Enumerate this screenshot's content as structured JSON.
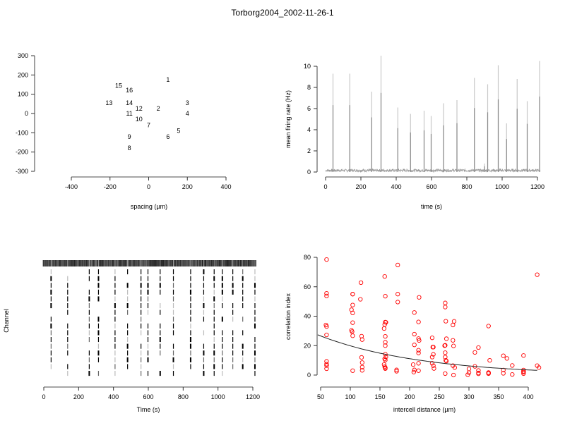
{
  "title": "Torborg2004_2002-11-26-1",
  "chart_data": [
    {
      "id": "layout",
      "type": "scatter",
      "title": "",
      "xlabel": "spacing (µm)",
      "ylabel": "",
      "xlim": [
        -400,
        400
      ],
      "ylim": [
        -300,
        300
      ],
      "xticks": [
        -400,
        -200,
        0,
        200,
        400
      ],
      "yticks": [
        -300,
        -200,
        -100,
        0,
        100,
        200,
        300
      ],
      "points": [
        {
          "label": "1",
          "x": 100,
          "y": 175
        },
        {
          "label": "2",
          "x": 50,
          "y": 25
        },
        {
          "label": "3",
          "x": 200,
          "y": 55
        },
        {
          "label": "4",
          "x": 200,
          "y": 0
        },
        {
          "label": "5",
          "x": 155,
          "y": -90
        },
        {
          "label": "6",
          "x": 100,
          "y": -120
        },
        {
          "label": "7",
          "x": 0,
          "y": -60
        },
        {
          "label": "8",
          "x": -100,
          "y": -180
        },
        {
          "label": "9",
          "x": -100,
          "y": -120
        },
        {
          "label": "10",
          "x": -50,
          "y": -30
        },
        {
          "label": "11",
          "x": -100,
          "y": 0
        },
        {
          "label": "12",
          "x": -50,
          "y": 25
        },
        {
          "label": "13",
          "x": -205,
          "y": 55
        },
        {
          "label": "14",
          "x": -100,
          "y": 55
        },
        {
          "label": "15",
          "x": -155,
          "y": 145
        },
        {
          "label": "16",
          "x": -100,
          "y": 120
        }
      ]
    },
    {
      "id": "rate",
      "type": "line",
      "title": "",
      "xlabel": "time (s)",
      "ylabel": "mean firing rate (Hz)",
      "xlim": [
        0,
        1200
      ],
      "ylim": [
        0,
        10
      ],
      "xticks": [
        0,
        200,
        400,
        600,
        800,
        1000,
        1200
      ],
      "yticks": [
        0,
        2,
        4,
        6,
        8,
        10
      ],
      "baseline": 0.15,
      "bursts": [
        {
          "t": 42,
          "peak": 9.3
        },
        {
          "t": 137,
          "peak": 9.3
        },
        {
          "t": 261,
          "peak": 7.6
        },
        {
          "t": 314,
          "peak": 11.0
        },
        {
          "t": 409,
          "peak": 6.1
        },
        {
          "t": 481,
          "peak": 5.5
        },
        {
          "t": 558,
          "peak": 5.8
        },
        {
          "t": 598,
          "peak": 5.3
        },
        {
          "t": 668,
          "peak": 6.5
        },
        {
          "t": 744,
          "peak": 6.8
        },
        {
          "t": 843,
          "peak": 8.9
        },
        {
          "t": 900,
          "peak": 0.8
        },
        {
          "t": 918,
          "peak": 8.3
        },
        {
          "t": 978,
          "peak": 10.1
        },
        {
          "t": 1025,
          "peak": 4.6
        },
        {
          "t": 1085,
          "peak": 8.8
        },
        {
          "t": 1142,
          "peak": 6.7
        },
        {
          "t": 1212,
          "peak": 10.5
        }
      ]
    },
    {
      "id": "raster",
      "type": "raster",
      "title": "",
      "xlabel": "Time (s)",
      "ylabel": "Channel",
      "xlim": [
        0,
        1200
      ],
      "xticks": [
        0,
        200,
        400,
        600,
        800,
        1000,
        1200
      ],
      "channels": 16,
      "burst_times": [
        42,
        137,
        261,
        314,
        409,
        481,
        558,
        598,
        668,
        744,
        843,
        918,
        978,
        1025,
        1085,
        1142,
        1212
      ]
    },
    {
      "id": "correlation",
      "type": "scatter",
      "title": "",
      "xlabel": "intercell distance (µm)",
      "ylabel": "correlation index",
      "xlim": [
        50,
        400
      ],
      "ylim": [
        0,
        80
      ],
      "xticks": [
        50,
        100,
        150,
        200,
        250,
        300,
        350,
        400
      ],
      "yticks": [
        0,
        20,
        40,
        60,
        80
      ],
      "marker_color": "#ff0000",
      "fit": {
        "a": 35.5,
        "b": 0.0058,
        "x_from": 45,
        "x_to": 415
      },
      "points": [
        [
          60,
          78.5
        ],
        [
          60,
          55.5
        ],
        [
          60,
          53.7
        ],
        [
          59,
          34
        ],
        [
          60,
          33
        ],
        [
          60,
          27.3
        ],
        [
          60,
          9.3
        ],
        [
          60,
          7.4
        ],
        [
          60,
          6.5
        ],
        [
          60,
          4.3
        ],
        [
          104,
          55
        ],
        [
          104,
          55
        ],
        [
          104,
          47.6
        ],
        [
          102,
          44.4
        ],
        [
          104,
          42.2
        ],
        [
          104,
          35.6
        ],
        [
          102,
          30.4
        ],
        [
          103,
          29.5
        ],
        [
          104,
          26.7
        ],
        [
          104,
          3
        ],
        [
          118,
          62.8
        ],
        [
          117,
          51.5
        ],
        [
          119,
          26.4
        ],
        [
          120,
          24.1
        ],
        [
          119,
          12
        ],
        [
          120,
          8.5
        ],
        [
          120,
          5.4
        ],
        [
          120,
          3.2
        ],
        [
          158,
          67
        ],
        [
          159,
          53.6
        ],
        [
          159,
          36
        ],
        [
          160,
          35.8
        ],
        [
          158,
          34.3
        ],
        [
          157,
          31.6
        ],
        [
          159,
          26.3
        ],
        [
          159,
          22.3
        ],
        [
          159,
          20
        ],
        [
          159,
          14.2
        ],
        [
          160,
          12.3
        ],
        [
          158,
          11
        ],
        [
          159,
          10.2
        ],
        [
          157,
          7.2
        ],
        [
          158,
          5.7
        ],
        [
          159,
          5
        ],
        [
          159,
          4.4
        ],
        [
          180,
          74.8
        ],
        [
          180,
          55
        ],
        [
          180,
          49.6
        ],
        [
          178,
          3.5
        ],
        [
          178,
          2.6
        ],
        [
          216,
          52.8
        ],
        [
          208,
          42.5
        ],
        [
          215,
          36.1
        ],
        [
          208,
          27.8
        ],
        [
          215,
          24.8
        ],
        [
          216,
          23.5
        ],
        [
          208,
          20.5
        ],
        [
          215,
          16.9
        ],
        [
          215,
          15
        ],
        [
          206,
          7.1
        ],
        [
          215,
          8
        ],
        [
          208,
          3.5
        ],
        [
          215,
          3
        ],
        [
          207,
          2
        ],
        [
          260,
          49
        ],
        [
          260,
          46.2
        ],
        [
          261,
          36.6
        ],
        [
          238,
          25.3
        ],
        [
          262,
          24.7
        ],
        [
          239,
          19
        ],
        [
          240,
          19
        ],
        [
          259,
          20
        ],
        [
          260,
          20.2
        ],
        [
          260,
          15.2
        ],
        [
          240,
          14.1
        ],
        [
          238,
          12.2
        ],
        [
          260,
          12.2
        ],
        [
          261,
          10
        ],
        [
          262,
          9.5
        ],
        [
          238,
          8
        ],
        [
          240,
          6.4
        ],
        [
          241,
          4.5
        ],
        [
          260,
          1
        ],
        [
          275,
          36.5
        ],
        [
          273,
          34
        ],
        [
          273,
          23.6
        ],
        [
          274,
          19.8
        ],
        [
          273,
          6.4
        ],
        [
          276,
          5.1
        ],
        [
          274,
          0
        ],
        [
          333,
          33.3
        ],
        [
          316,
          18.7
        ],
        [
          310,
          15.4
        ],
        [
          335,
          10
        ],
        [
          310,
          5.9
        ],
        [
          300,
          4.2
        ],
        [
          300,
          1.6
        ],
        [
          298,
          0.2
        ],
        [
          316,
          3.1
        ],
        [
          316,
          1.4
        ],
        [
          316,
          0.9
        ],
        [
          333,
          1.7
        ],
        [
          333,
          1.2
        ],
        [
          333,
          1
        ],
        [
          358,
          13.1
        ],
        [
          364,
          11.3
        ],
        [
          373,
          6.5
        ],
        [
          358,
          3.4
        ],
        [
          358,
          1.2
        ],
        [
          373,
          0.4
        ],
        [
          392,
          13.3
        ],
        [
          392,
          3.4
        ],
        [
          392,
          2.5
        ],
        [
          392,
          1.9
        ],
        [
          392,
          1
        ],
        [
          415,
          68.2
        ],
        [
          415,
          6.4
        ],
        [
          418,
          5.1
        ]
      ]
    }
  ]
}
